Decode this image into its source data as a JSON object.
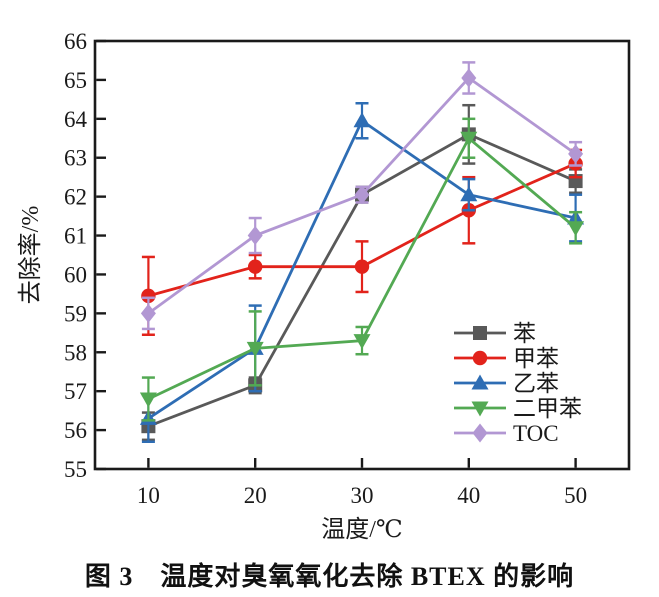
{
  "figure": {
    "caption": "图 3　温度对臭氧氧化去除 BTEX 的影响"
  },
  "colors": {
    "axis": "#1a1a1a",
    "background": "#ffffff",
    "benzene": "#595959",
    "toluene": "#e2231b",
    "ethylbenzene": "#2e6db4",
    "xylene": "#53a953",
    "toc": "#b297d3"
  },
  "chart_data": {
    "type": "line",
    "title": "",
    "xlabel": "温度/℃",
    "ylabel": "去除率/%",
    "x": [
      10,
      20,
      30,
      40,
      50
    ],
    "xticks": [
      10,
      20,
      30,
      40,
      50
    ],
    "xlim": [
      5,
      55
    ],
    "ylim": [
      55,
      66
    ],
    "ytick_interval": 1,
    "grid": false,
    "legend_position": "inside lower right",
    "error_bars": true,
    "series": [
      {
        "name": "苯",
        "key": "benzene",
        "marker": "square",
        "color": "#595959",
        "values": [
          56.1,
          57.15,
          62.05,
          63.6,
          62.4
        ],
        "errors": [
          0.35,
          0.2,
          0.2,
          0.75,
          0.3
        ]
      },
      {
        "name": "甲苯",
        "key": "toluene",
        "marker": "circle",
        "color": "#e2231b",
        "values": [
          59.45,
          60.2,
          60.2,
          61.65,
          62.85
        ],
        "errors": [
          1.0,
          0.3,
          0.65,
          0.85,
          0.35
        ]
      },
      {
        "name": "乙苯",
        "key": "ethylbenzene",
        "marker": "triangle-up",
        "color": "#2e6db4",
        "values": [
          56.3,
          58.1,
          63.95,
          62.05,
          61.45
        ],
        "errors": [
          0.6,
          1.1,
          0.45,
          0.4,
          0.6
        ]
      },
      {
        "name": "二甲苯",
        "key": "xylene",
        "marker": "triangle-down",
        "color": "#53a953",
        "values": [
          56.8,
          58.1,
          58.3,
          63.5,
          61.2
        ],
        "errors": [
          0.55,
          0.95,
          0.35,
          0.5,
          0.4
        ]
      },
      {
        "name": "TOC",
        "key": "toc",
        "marker": "diamond",
        "color": "#b297d3",
        "values": [
          59.0,
          61.0,
          62.05,
          65.05,
          63.1
        ],
        "errors": [
          0.4,
          0.45,
          0.2,
          0.4,
          0.3
        ]
      }
    ]
  }
}
